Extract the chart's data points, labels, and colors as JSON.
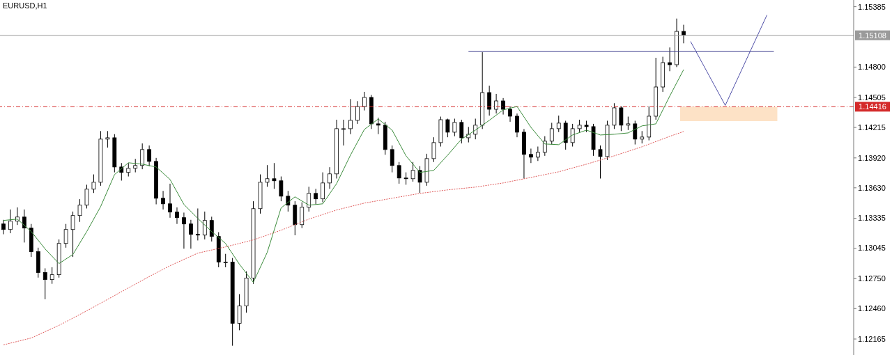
{
  "chart_data": {
    "type": "candlestick",
    "title": "EURUSD,H1",
    "categories": [
      null,
      null,
      null,
      null,
      null,
      null,
      null,
      null,
      null,
      null,
      null,
      null,
      null,
      null,
      null,
      null,
      null,
      null,
      null,
      null,
      null,
      null,
      null,
      null,
      null,
      null,
      null,
      null,
      null,
      null,
      null,
      null,
      null,
      null,
      null,
      null,
      null,
      null,
      null,
      null,
      null,
      null,
      null,
      null,
      null,
      null,
      null,
      null,
      null,
      null,
      null,
      null,
      null,
      null,
      null,
      null,
      null,
      null,
      null,
      null,
      null,
      null,
      null,
      null,
      null,
      null,
      null,
      null,
      null,
      null,
      null,
      null,
      null,
      null,
      null,
      null,
      null,
      null,
      null,
      null,
      null,
      null,
      null,
      null,
      null,
      null,
      null,
      null,
      null,
      null,
      null,
      null,
      null,
      null,
      null,
      null,
      null,
      null,
      null,
      null,
      null,
      null,
      null,
      null,
      null,
      null,
      null,
      null,
      null,
      null,
      null,
      null,
      null,
      null,
      null,
      null,
      null,
      null,
      null,
      null,
      null,
      null,
      null
    ],
    "ohlc": [
      [
        1.1328,
        1.1332,
        1.1318,
        1.13226
      ],
      [
        1.13226,
        1.1342,
        1.1319,
        1.13307
      ],
      [
        1.13307,
        1.1344,
        1.1327,
        1.13347
      ],
      [
        1.13347,
        1.1342,
        1.131,
        1.1324
      ],
      [
        1.1324,
        1.1328,
        1.1296,
        1.13011
      ],
      [
        1.13011,
        1.1305,
        1.1276,
        1.12809
      ],
      [
        1.12809,
        1.1285,
        1.1255,
        1.12741
      ],
      [
        1.12741,
        1.1286,
        1.127,
        1.12788
      ],
      [
        1.12788,
        1.1313,
        1.1276,
        1.13091
      ],
      [
        1.13091,
        1.1328,
        1.1305,
        1.13226
      ],
      [
        1.13226,
        1.134,
        1.1296,
        1.13361
      ],
      [
        1.13361,
        1.1352,
        1.133,
        1.13462
      ],
      [
        1.13462,
        1.1366,
        1.1343,
        1.13617
      ],
      [
        1.13617,
        1.1376,
        1.1358,
        1.13684
      ],
      [
        1.13684,
        1.1418,
        1.1365,
        1.14102
      ],
      [
        1.14102,
        1.1418,
        1.1402,
        1.14115
      ],
      [
        1.14115,
        1.1415,
        1.1378,
        1.13832
      ],
      [
        1.13832,
        1.1387,
        1.137,
        1.13779
      ],
      [
        1.13779,
        1.1387,
        1.1374,
        1.13819
      ],
      [
        1.13819,
        1.1391,
        1.1378,
        1.13846
      ],
      [
        1.13846,
        1.1406,
        1.1381,
        1.14001
      ],
      [
        1.14001,
        1.1404,
        1.1384,
        1.13886
      ],
      [
        1.13886,
        1.1392,
        1.1347,
        1.13529
      ],
      [
        1.13529,
        1.136,
        1.1342,
        1.13475
      ],
      [
        1.13475,
        1.1367,
        1.1334,
        1.13395
      ],
      [
        1.13395,
        1.1344,
        1.1328,
        1.13341
      ],
      [
        1.13341,
        1.1339,
        1.1304,
        1.1328
      ],
      [
        1.1328,
        1.1332,
        1.1304,
        1.13179
      ],
      [
        1.13179,
        1.1343,
        1.1312,
        1.13172
      ],
      [
        1.13172,
        1.134,
        1.1313,
        1.13314
      ],
      [
        1.13314,
        1.1335,
        1.1311,
        1.13159
      ],
      [
        1.13159,
        1.132,
        1.1286,
        1.1291
      ],
      [
        1.1291,
        1.1299,
        1.1286,
        1.1291
      ],
      [
        1.1291,
        1.1295,
        1.121,
        1.12317
      ],
      [
        1.12317,
        1.126,
        1.1225,
        1.12485
      ],
      [
        1.12485,
        1.1282,
        1.1242,
        1.12755
      ],
      [
        1.12755,
        1.135,
        1.127,
        1.13428
      ],
      [
        1.13428,
        1.1376,
        1.1338,
        1.13684
      ],
      [
        1.13684,
        1.1385,
        1.1364,
        1.13718
      ],
      [
        1.13718,
        1.1387,
        1.1362,
        1.13698
      ],
      [
        1.13698,
        1.1374,
        1.135,
        1.13549
      ],
      [
        1.13549,
        1.136,
        1.134,
        1.13462
      ],
      [
        1.13462,
        1.135,
        1.1317,
        1.13273
      ],
      [
        1.13273,
        1.1349,
        1.1324,
        1.13442
      ],
      [
        1.13442,
        1.1364,
        1.134,
        1.13576
      ],
      [
        1.13576,
        1.1362,
        1.1347,
        1.13523
      ],
      [
        1.13523,
        1.1378,
        1.1349,
        1.13677
      ],
      [
        1.13677,
        1.1383,
        1.1362,
        1.13765
      ],
      [
        1.13765,
        1.1429,
        1.1372,
        1.14203
      ],
      [
        1.14203,
        1.1429,
        1.1404,
        1.14203
      ],
      [
        1.14203,
        1.1449,
        1.1415,
        1.14284
      ],
      [
        1.14284,
        1.1447,
        1.1425,
        1.14418
      ],
      [
        1.14418,
        1.1456,
        1.1438,
        1.14506
      ],
      [
        1.14506,
        1.1453,
        1.142,
        1.1425
      ],
      [
        1.1425,
        1.1431,
        1.1415,
        1.14237
      ],
      [
        1.14237,
        1.1427,
        1.1395,
        1.14001
      ],
      [
        1.14001,
        1.1404,
        1.1378,
        1.13846
      ],
      [
        1.13846,
        1.1388,
        1.1367,
        1.13725
      ],
      [
        1.13725,
        1.1378,
        1.1366,
        1.13718
      ],
      [
        1.13718,
        1.1388,
        1.1369,
        1.13799
      ],
      [
        1.13799,
        1.1384,
        1.1358,
        1.13684
      ],
      [
        1.13684,
        1.1396,
        1.1365,
        1.13913
      ],
      [
        1.13913,
        1.1412,
        1.1388,
        1.14068
      ],
      [
        1.14068,
        1.1432,
        1.1403,
        1.1429
      ],
      [
        1.1429,
        1.143,
        1.1412,
        1.14169
      ],
      [
        1.14169,
        1.143,
        1.1413,
        1.14264
      ],
      [
        1.14264,
        1.1429,
        1.1406,
        1.14115
      ],
      [
        1.14115,
        1.1422,
        1.1407,
        1.14149
      ],
      [
        1.14149,
        1.143,
        1.141,
        1.14237
      ],
      [
        1.14237,
        1.14944,
        1.142,
        1.14553
      ],
      [
        1.14553,
        1.1462,
        1.1433,
        1.14391
      ],
      [
        1.14391,
        1.1454,
        1.1435,
        1.14472
      ],
      [
        1.14472,
        1.145,
        1.1434,
        1.14391
      ],
      [
        1.14391,
        1.1442,
        1.1427,
        1.14324
      ],
      [
        1.14324,
        1.1435,
        1.1412,
        1.14169
      ],
      [
        1.14169,
        1.142,
        1.1372,
        1.13954
      ],
      [
        1.13954,
        1.1401,
        1.1387,
        1.13927
      ],
      [
        1.13927,
        1.1403,
        1.1389,
        1.13974
      ],
      [
        1.13974,
        1.1413,
        1.1394,
        1.14082
      ],
      [
        1.14082,
        1.1426,
        1.1405,
        1.14203
      ],
      [
        1.14203,
        1.1433,
        1.1417,
        1.14257
      ],
      [
        1.14257,
        1.1428,
        1.14,
        1.14068
      ],
      [
        1.14068,
        1.1425,
        1.1403,
        1.14203
      ],
      [
        1.14203,
        1.1429,
        1.1417,
        1.14237
      ],
      [
        1.14237,
        1.1428,
        1.1417,
        1.14223
      ],
      [
        1.14223,
        1.1425,
        1.1394,
        1.14001
      ],
      [
        1.14001,
        1.1404,
        1.1372,
        1.13933
      ],
      [
        1.13933,
        1.1428,
        1.139,
        1.14237
      ],
      [
        1.14237,
        1.1445,
        1.142,
        1.14405
      ],
      [
        1.14405,
        1.1442,
        1.1418,
        1.14237
      ],
      [
        1.14237,
        1.1432,
        1.1419,
        1.1425
      ],
      [
        1.1425,
        1.1428,
        1.1405,
        1.14102
      ],
      [
        1.14102,
        1.1418,
        1.1406,
        1.14122
      ],
      [
        1.14122,
        1.1442,
        1.1409,
        1.14324
      ],
      [
        1.14324,
        1.1489,
        1.1429,
        1.14607
      ],
      [
        1.14607,
        1.149,
        1.1456,
        1.14843
      ],
      [
        1.14843,
        1.1499,
        1.1476,
        1.14823
      ],
      [
        1.14823,
        1.1527,
        1.148,
        1.15146
      ],
      [
        1.15146,
        1.1521,
        1.1503,
        1.15108
      ],
      null,
      null,
      null,
      null,
      null,
      null,
      null,
      null,
      null,
      null,
      null,
      null,
      null,
      null,
      null,
      null,
      null,
      null,
      null,
      null,
      null,
      null,
      null,
      null
    ],
    "series": [
      {
        "type": "line",
        "color": "#3c8c3c",
        "values": [
          1.13314,
          null,
          1.13327,
          null,
          1.13206,
          null,
          1.13038,
          null,
          1.12896,
          null,
          1.12984,
          null,
          1.13206,
          null,
          1.13448,
          null,
          1.13758,
          null,
          1.13873,
          null,
          1.13859,
          null,
          1.13832,
          null,
          1.13711,
          null,
          1.13469,
          null,
          1.13334,
          null,
          1.13206,
          null,
          1.13091,
          null,
          1.12889,
          null,
          1.12714,
          null,
          1.13004,
          null,
          1.13435,
          null,
          1.13543,
          null,
          1.13462,
          null,
          1.13475,
          null,
          1.13671,
          null,
          1.13947,
          null,
          1.14196,
          null,
          1.14297,
          null,
          1.14189,
          null,
          1.1394,
          null,
          1.13779,
          null,
          1.13799,
          null,
          1.13947,
          null,
          1.14102,
          null,
          1.14189,
          null,
          1.14284,
          null,
          1.14385,
          null,
          1.14418,
          null,
          1.14216,
          null,
          1.14055,
          null,
          1.14048,
          null,
          1.14142,
          null,
          1.14189,
          null,
          1.14142,
          null,
          1.14149,
          null,
          1.14162,
          null,
          1.1423,
          null,
          1.1425,
          null,
          1.14519,
          null,
          1.14775,
          null,
          null,
          null,
          null,
          null,
          null,
          null,
          null,
          null,
          null,
          null,
          null,
          null,
          null,
          null,
          null,
          null,
          null,
          null,
          null,
          null,
          null,
          null,
          null
        ]
      },
      {
        "type": "line",
        "color": "#e05a5a",
        "line_style": "dotted",
        "values": [
          1.12108,
          null,
          null,
          null,
          1.12175,
          null,
          null,
          null,
          1.12297,
          null,
          null,
          null,
          1.12438,
          null,
          null,
          null,
          1.12586,
          null,
          null,
          null,
          1.12734,
          null,
          null,
          null,
          1.12876,
          null,
          null,
          null,
          1.12997,
          null,
          null,
          null,
          1.13058,
          null,
          null,
          null,
          1.13125,
          null,
          null,
          null,
          1.13219,
          null,
          null,
          null,
          1.13327,
          null,
          null,
          null,
          1.13415,
          null,
          null,
          null,
          1.13482,
          null,
          null,
          null,
          1.13529,
          null,
          null,
          null,
          1.13576,
          null,
          null,
          null,
          1.1361,
          null,
          null,
          null,
          1.13637,
          null,
          null,
          null,
          1.13677,
          null,
          null,
          null,
          1.13731,
          null,
          null,
          null,
          1.13785,
          null,
          null,
          null,
          1.13859,
          null,
          null,
          null,
          1.1394,
          null,
          null,
          null,
          1.14028,
          null,
          null,
          null,
          1.14129,
          null,
          1.14176,
          null,
          null,
          null,
          null,
          null,
          null,
          null,
          null,
          null,
          null,
          null,
          null,
          null,
          null,
          null,
          null,
          null,
          null,
          null,
          null,
          null,
          null,
          null,
          null
        ]
      },
      {
        "type": "line",
        "color": "#3a3a8c",
        "values": [
          null,
          null,
          null,
          null,
          null,
          null,
          null,
          null,
          null,
          null,
          null,
          null,
          null,
          null,
          null,
          null,
          null,
          null,
          null,
          null,
          null,
          null,
          null,
          null,
          null,
          null,
          null,
          null,
          null,
          null,
          null,
          null,
          null,
          null,
          null,
          null,
          null,
          null,
          null,
          null,
          null,
          null,
          null,
          null,
          null,
          null,
          null,
          null,
          null,
          null,
          null,
          null,
          null,
          null,
          null,
          null,
          null,
          null,
          null,
          null,
          null,
          null,
          null,
          null,
          null,
          null,
          null,
          1.14954,
          null,
          null,
          null,
          null,
          null,
          null,
          null,
          null,
          null,
          null,
          null,
          null,
          null,
          null,
          null,
          null,
          null,
          null,
          null,
          null,
          null,
          null,
          null,
          null,
          null,
          null,
          null,
          null,
          null,
          null,
          null,
          null,
          null,
          null,
          null,
          null,
          null,
          null,
          null,
          null,
          null,
          null,
          null,
          1.14954,
          null,
          null,
          null,
          null,
          null,
          null,
          null,
          null,
          null,
          null,
          null
        ]
      },
      {
        "type": "line",
        "color": "#5050a8",
        "values": [
          null,
          null,
          null,
          null,
          null,
          null,
          null,
          null,
          null,
          null,
          null,
          null,
          null,
          null,
          null,
          null,
          null,
          null,
          null,
          null,
          null,
          null,
          null,
          null,
          null,
          null,
          null,
          null,
          null,
          null,
          null,
          null,
          null,
          null,
          null,
          null,
          null,
          null,
          null,
          null,
          null,
          null,
          null,
          null,
          null,
          null,
          null,
          null,
          null,
          null,
          null,
          null,
          null,
          null,
          null,
          null,
          null,
          null,
          null,
          null,
          null,
          null,
          null,
          null,
          null,
          null,
          null,
          null,
          null,
          null,
          null,
          null,
          null,
          null,
          null,
          null,
          null,
          null,
          null,
          null,
          null,
          null,
          null,
          null,
          null,
          null,
          null,
          null,
          null,
          null,
          null,
          null,
          null,
          null,
          null,
          null,
          null,
          null,
          null,
          1.15048,
          null,
          null,
          null,
          null,
          1.14429,
          null,
          null,
          null,
          null,
          null,
          1.15304,
          null,
          null,
          null,
          null,
          null,
          null,
          null,
          null,
          null,
          null,
          null,
          null
        ]
      }
    ],
    "marker": "none",
    "ylim": [
      1.1201,
      1.1545
    ],
    "yticks": [
      1.15385,
      {
        "value": 1.148,
        "label": "1.14800"
      },
      1.14505,
      1.14215,
      {
        "value": 1.1392,
        "label": "1.13920"
      },
      {
        "value": 1.1363,
        "label": "1.13630"
      },
      1.13335,
      1.13045,
      {
        "value": 1.1275,
        "label": "1.12750"
      },
      {
        "value": 1.1246,
        "label": "1.12460"
      },
      1.12165
    ],
    "tick_labels": "y",
    "ref_lines": [
      {
        "axis": "y",
        "value": 1.15108,
        "label": "1.15108",
        "color": "#9a9a9a",
        "line_style": "solid"
      },
      {
        "axis": "y",
        "value": 1.14416,
        "label": "1.14416",
        "color": "#d42a2a",
        "line_style": "dashed"
      }
    ],
    "bands": [
      {
        "axis": "y",
        "from": 1.14276,
        "to": 1.14416,
        "color": "#fde2c6"
      }
    ]
  }
}
